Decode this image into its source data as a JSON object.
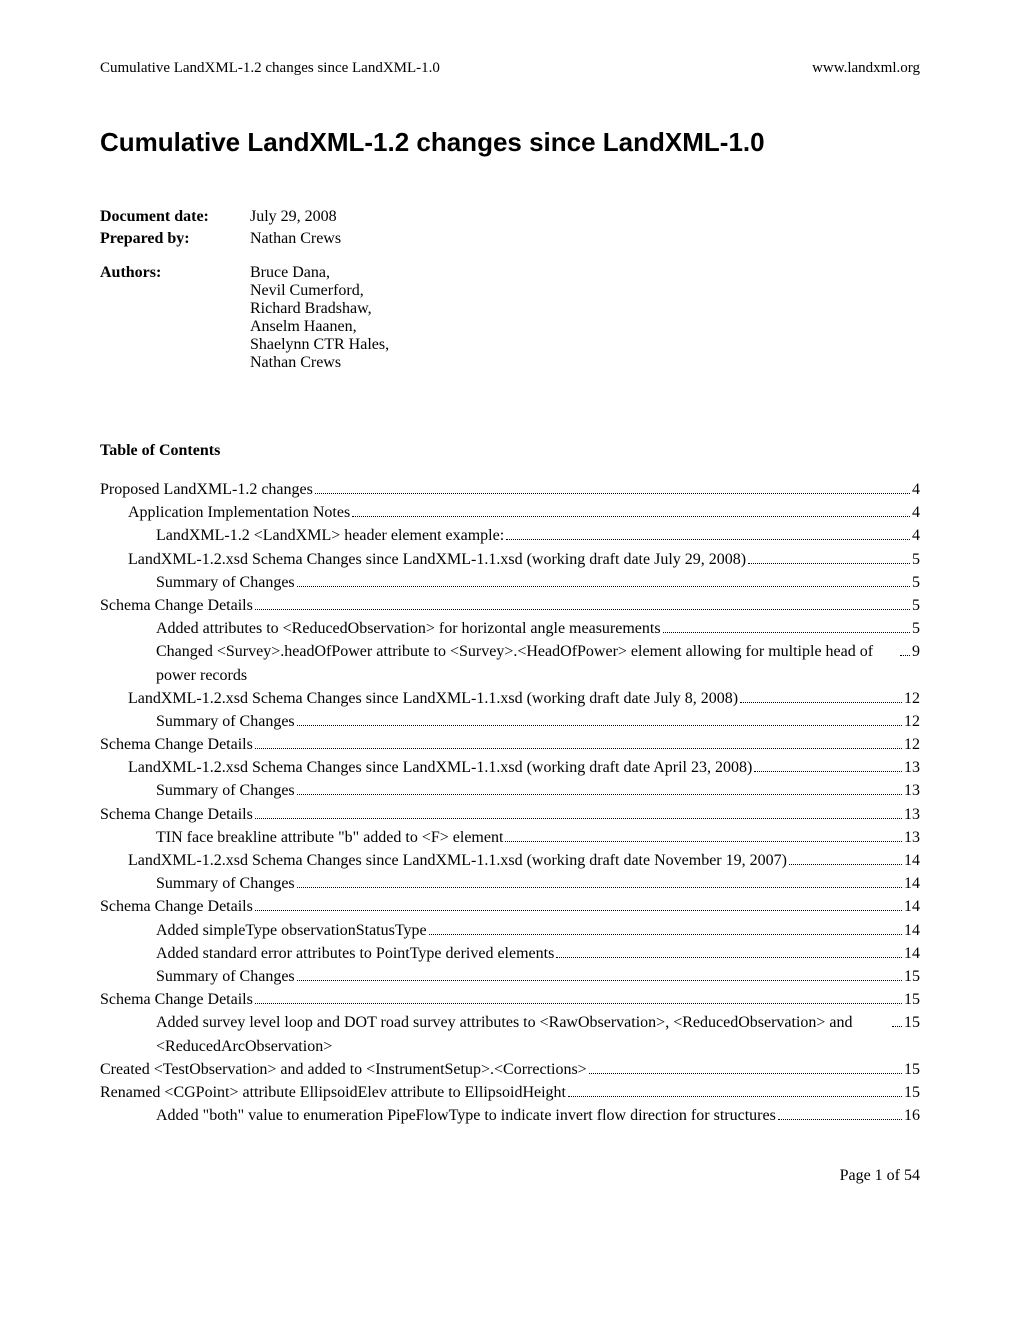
{
  "header": {
    "left": "Cumulative LandXML-1.2 changes since LandXML-1.0",
    "right": "www.landxml.org"
  },
  "title": "Cumulative LandXML-1.2 changes since LandXML-1.0",
  "meta": {
    "document_date_label": "Document date:",
    "document_date_value": "July 29, 2008",
    "prepared_by_label": "Prepared by:",
    "prepared_by_value": "Nathan Crews",
    "authors_label": "Authors:",
    "authors_value": "Bruce Dana,\nNevil Cumerford,\nRichard Bradshaw,\nAnselm Haanen,\nShaelynn CTR Hales,\nNathan Crews"
  },
  "toc_heading": "Table of Contents",
  "toc": [
    {
      "indent": 0,
      "title": "Proposed LandXML-1.2 changes",
      "page": "4"
    },
    {
      "indent": 1,
      "title": "Application Implementation Notes",
      "page": "4"
    },
    {
      "indent": 2,
      "title": "LandXML-1.2 <LandXML> header element example:",
      "page": "4"
    },
    {
      "indent": 1,
      "title": "LandXML-1.2.xsd Schema Changes since LandXML-1.1.xsd (working draft date July 29, 2008)",
      "page": "5"
    },
    {
      "indent": 2,
      "title": "Summary of Changes",
      "page": "5"
    },
    {
      "indent": 0,
      "title": "Schema Change Details",
      "page": "5"
    },
    {
      "indent": 2,
      "title": "Added attributes to <ReducedObservation> for horizontal angle measurements",
      "page": "5"
    },
    {
      "indent": 2,
      "title": "Changed <Survey>.headOfPower attribute to <Survey>.<HeadOfPower> element allowing for multiple head of power records",
      "page": "9"
    },
    {
      "indent": 1,
      "title": "LandXML-1.2.xsd Schema Changes since LandXML-1.1.xsd (working draft date July 8, 2008)",
      "page": "12"
    },
    {
      "indent": 2,
      "title": "Summary of Changes",
      "page": "12"
    },
    {
      "indent": 0,
      "title": "Schema Change Details",
      "page": "12"
    },
    {
      "indent": 1,
      "title": "LandXML-1.2.xsd Schema Changes since LandXML-1.1.xsd (working draft date April 23, 2008)",
      "page": "13"
    },
    {
      "indent": 2,
      "title": "Summary of Changes",
      "page": "13"
    },
    {
      "indent": 0,
      "title": "Schema Change Details",
      "page": "13"
    },
    {
      "indent": 2,
      "title": "TIN face breakline attribute \"b\" added to <F> element",
      "page": "13"
    },
    {
      "indent": 1,
      "title": "LandXML-1.2.xsd Schema Changes since LandXML-1.1.xsd (working draft date November 19, 2007)",
      "page": "14"
    },
    {
      "indent": 2,
      "title": "Summary of Changes",
      "page": "14"
    },
    {
      "indent": 0,
      "title": "Schema Change Details",
      "page": "14"
    },
    {
      "indent": 2,
      "title": "Added simpleType observationStatusType",
      "page": "14"
    },
    {
      "indent": 2,
      "title": "Added standard error attributes to PointType derived elements",
      "page": "14"
    },
    {
      "indent": 2,
      "title": "Summary of Changes",
      "page": "15"
    },
    {
      "indent": 0,
      "title": "Schema Change Details",
      "page": "15"
    },
    {
      "indent": 2,
      "title": "Added survey level loop and DOT road survey attributes to <RawObservation>, <ReducedObservation> and <ReducedArcObservation>",
      "page": "15"
    },
    {
      "indent": 0,
      "title": "Created <TestObservation> and added to <InstrumentSetup>.<Corrections>",
      "page": "15"
    },
    {
      "indent": 0,
      "title": "Renamed <CGPoint> attribute EllipsoidElev attribute to EllipsoidHeight",
      "page": "15"
    },
    {
      "indent": 2,
      "title": "Added \"both\" value to enumeration PipeFlowType to indicate invert flow direction for structures",
      "page": "16"
    }
  ],
  "footer": "Page 1 of 54"
}
